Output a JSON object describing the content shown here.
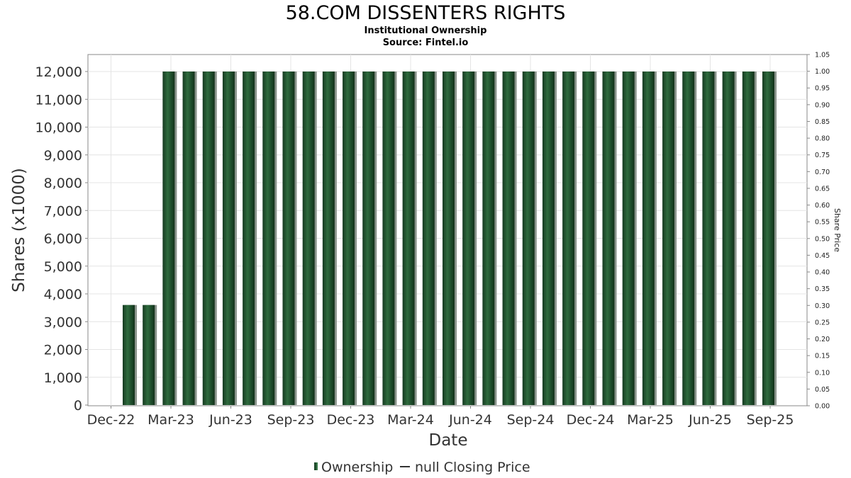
{
  "chart_data": {
    "type": "bar",
    "title": "58.COM DISSENTERS RIGHTS",
    "subtitles": [
      "Institutional Ownership",
      "Source: Fintel.io"
    ],
    "xlabel": "Date",
    "ylabel": "Shares (x1000)",
    "y2label": "Share Price",
    "ylim": [
      0,
      12000
    ],
    "y2lim": [
      0,
      1.05
    ],
    "yticks": [
      "0",
      "1,000",
      "2,000",
      "3,000",
      "4,000",
      "5,000",
      "6,000",
      "7,000",
      "8,000",
      "9,000",
      "10,000",
      "11,000",
      "12,000"
    ],
    "y2ticks": [
      "0.00",
      "0.05",
      "0.10",
      "0.15",
      "0.20",
      "0.25",
      "0.30",
      "0.35",
      "0.40",
      "0.45",
      "0.50",
      "0.55",
      "0.60",
      "0.65",
      "0.70",
      "0.75",
      "0.80",
      "0.85",
      "0.90",
      "0.95",
      "1.00",
      "1.05"
    ],
    "xticks": [
      "Dec-22",
      "Mar-23",
      "Jun-23",
      "Sep-23",
      "Dec-23",
      "Mar-24",
      "Jun-24",
      "Sep-24",
      "Dec-24",
      "Mar-25",
      "Jun-25",
      "Sep-25"
    ],
    "grid": true,
    "legend_position": "bottom",
    "legend": [
      "Ownership",
      "null Closing Price"
    ],
    "bar_color": "#1e4a2b",
    "values": [
      3600,
      3600,
      12000,
      12000,
      12000,
      12000,
      12000,
      12000,
      12000,
      12000,
      12000,
      12000,
      12000,
      12000,
      12000,
      12000,
      12000,
      12000,
      12000,
      12000,
      12000,
      12000,
      12000,
      12000,
      12000,
      12000,
      12000,
      12000,
      12000,
      12000,
      12000,
      12000,
      12000
    ]
  }
}
